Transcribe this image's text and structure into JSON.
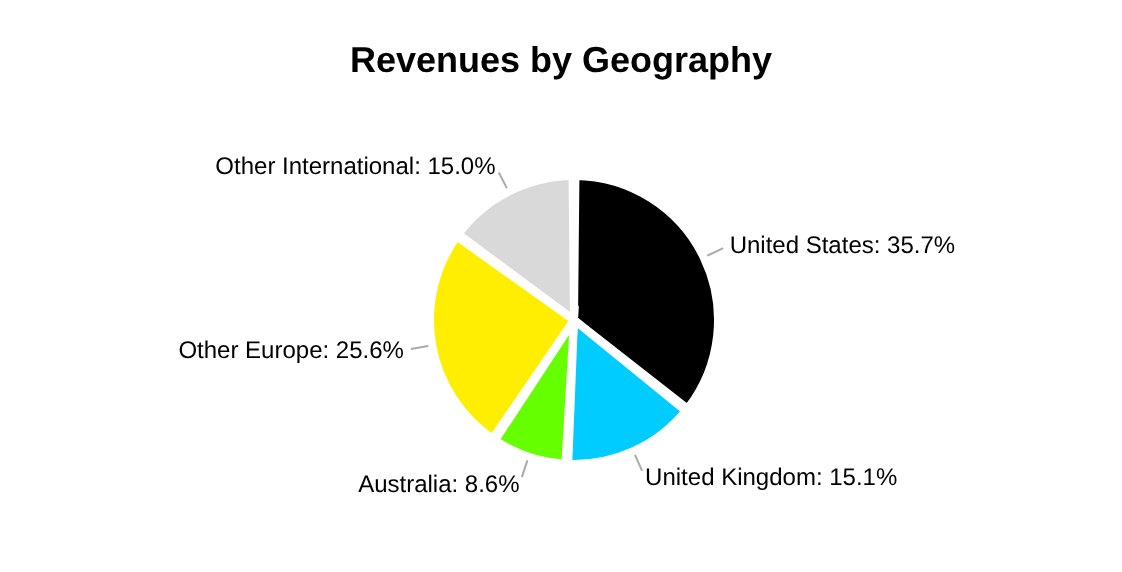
{
  "chart_data": {
    "type": "pie",
    "title": "Revenues by Geography",
    "categories": [
      "United States",
      "United Kingdom",
      "Australia",
      "Other Europe",
      "Other International"
    ],
    "values": [
      35.7,
      15.1,
      8.6,
      25.6,
      15.0
    ],
    "value_labels": [
      "35.7%",
      "15.1%",
      "8.6%",
      "25.6%",
      "15.0%"
    ],
    "colors": [
      "#000000",
      "#00ccff",
      "#66ff00",
      "#ffee00",
      "#d9d9d9"
    ],
    "legend": false
  }
}
